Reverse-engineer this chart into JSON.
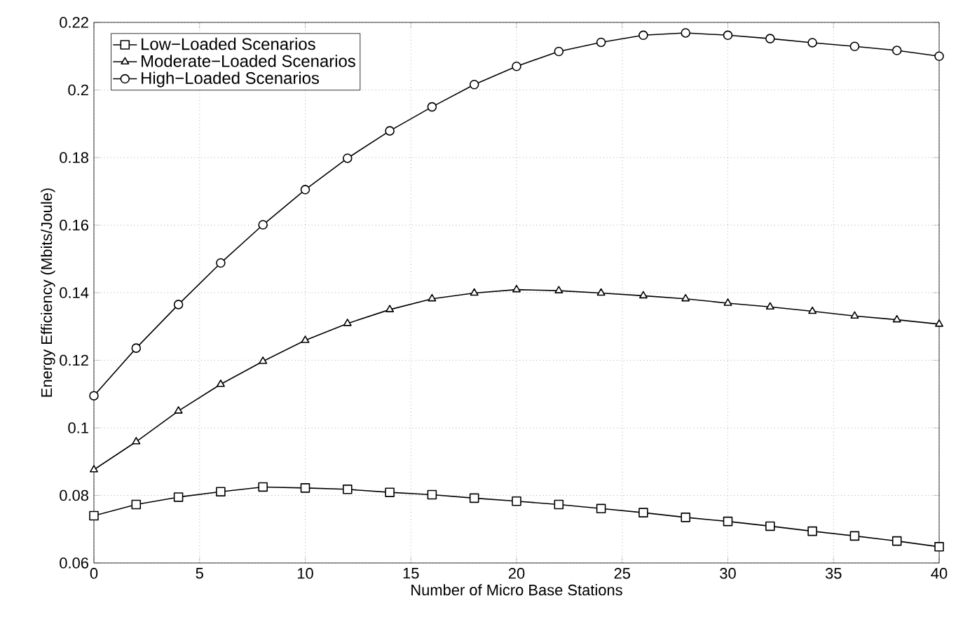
{
  "chart_data": {
    "type": "line",
    "xlabel": "Number of Micro Base Stations",
    "ylabel": "Energy Efficiency (Mbits/Joule)",
    "x": [
      0,
      2,
      4,
      6,
      8,
      10,
      12,
      14,
      16,
      18,
      20,
      22,
      24,
      26,
      28,
      30,
      32,
      34,
      36,
      38,
      40
    ],
    "series": [
      {
        "name": "Low−Loaded Scenarios",
        "color": "#000000",
        "marker": "square",
        "values": [
          0.074,
          0.0773,
          0.0795,
          0.0811,
          0.0825,
          0.0822,
          0.0818,
          0.0809,
          0.0802,
          0.0792,
          0.0783,
          0.0773,
          0.0761,
          0.0749,
          0.0735,
          0.0723,
          0.0709,
          0.0694,
          0.068,
          0.0665,
          0.0648
        ]
      },
      {
        "name": "Moderate−Loaded Scenarios",
        "color": "#000000",
        "marker": "triangle",
        "values": [
          0.0876,
          0.0959,
          0.105,
          0.1129,
          0.1197,
          0.1259,
          0.1309,
          0.135,
          0.1382,
          0.1399,
          0.1409,
          0.1406,
          0.1399,
          0.1391,
          0.1382,
          0.1369,
          0.1358,
          0.1345,
          0.1331,
          0.132,
          0.1307
        ]
      },
      {
        "name": "High−Loaded Scenarios",
        "color": "#000000",
        "marker": "circle",
        "values": [
          0.1095,
          0.1236,
          0.1365,
          0.1488,
          0.1601,
          0.1705,
          0.1798,
          0.1879,
          0.195,
          0.2016,
          0.207,
          0.2114,
          0.2141,
          0.2162,
          0.2169,
          0.2162,
          0.2152,
          0.214,
          0.2129,
          0.2117,
          0.21
        ]
      }
    ],
    "xlim": [
      0,
      40
    ],
    "xticks": [
      0,
      5,
      10,
      15,
      20,
      25,
      30,
      35,
      40
    ],
    "ylim": [
      0.06,
      0.22
    ],
    "yticks": [
      0.06,
      0.08,
      0.1,
      0.12,
      0.14,
      0.16,
      0.18,
      0.2,
      0.22
    ],
    "grid": true,
    "legend": "top left",
    "line_style": "solid"
  }
}
